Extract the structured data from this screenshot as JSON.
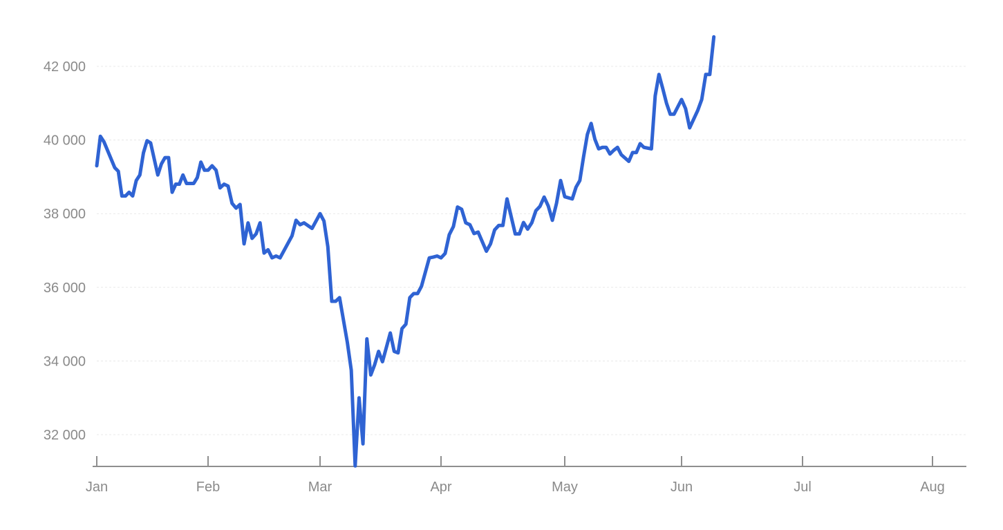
{
  "colors": {
    "line": "#2f63d3",
    "grid": "#e8e8e8",
    "axis": "#8e8e8e",
    "label": "#8a8a8a"
  },
  "chart_data": {
    "type": "line",
    "title": "",
    "xlabel": "",
    "ylabel": "",
    "grid": true,
    "legend": "none",
    "x_ticks": [
      "Jan",
      "Feb",
      "Mar",
      "Apr",
      "May",
      "Jun",
      "Jul",
      "Aug"
    ],
    "y_ticks": [
      "32 000",
      "34 000",
      "36 000",
      "38 000",
      "40 000",
      "42 000"
    ],
    "y_tick_values": [
      32000,
      34000,
      36000,
      38000,
      40000,
      42000
    ],
    "ylim": [
      31150,
      42900
    ],
    "xlim": [
      "Jan 1",
      "Aug 8"
    ],
    "series": [
      {
        "values": [
          [
            "Jan 1",
            39300
          ],
          [
            "Jan 2",
            40100
          ],
          [
            "Jan 3",
            39950
          ],
          [
            "Jan 6",
            39250
          ],
          [
            "Jan 7",
            39150
          ],
          [
            "Jan 8",
            38480
          ],
          [
            "Jan 9",
            38480
          ],
          [
            "Jan 10",
            38580
          ],
          [
            "Jan 11",
            38480
          ],
          [
            "Jan 12",
            38900
          ],
          [
            "Jan 13",
            39050
          ],
          [
            "Jan 14",
            39650
          ],
          [
            "Jan 15",
            39980
          ],
          [
            "Jan 16",
            39920
          ],
          [
            "Jan 18",
            39050
          ],
          [
            "Jan 19",
            39350
          ],
          [
            "Jan 20",
            39520
          ],
          [
            "Jan 21",
            39520
          ],
          [
            "Jan 22",
            38580
          ],
          [
            "Jan 23",
            38800
          ],
          [
            "Jan 24",
            38800
          ],
          [
            "Jan 25",
            39050
          ],
          [
            "Jan 26",
            38820
          ],
          [
            "Jan 28",
            38820
          ],
          [
            "Jan 29",
            38980
          ],
          [
            "Jan 30",
            39400
          ],
          [
            "Jan 31",
            39180
          ],
          [
            "Feb 1",
            39180
          ],
          [
            "Feb 2",
            39300
          ],
          [
            "Feb 3",
            39180
          ],
          [
            "Feb 4",
            38700
          ],
          [
            "Feb 5",
            38800
          ],
          [
            "Feb 6",
            38750
          ],
          [
            "Feb 7",
            38280
          ],
          [
            "Feb 8",
            38150
          ],
          [
            "Feb 9",
            38250
          ],
          [
            "Feb 10",
            37180
          ],
          [
            "Feb 11",
            37750
          ],
          [
            "Feb 12",
            37330
          ],
          [
            "Feb 13",
            37450
          ],
          [
            "Feb 14",
            37750
          ],
          [
            "Feb 15",
            36930
          ],
          [
            "Feb 16",
            37020
          ],
          [
            "Feb 17",
            36800
          ],
          [
            "Feb 18",
            36850
          ],
          [
            "Feb 19",
            36800
          ],
          [
            "Feb 22",
            37400
          ],
          [
            "Feb 23",
            37820
          ],
          [
            "Feb 24",
            37700
          ],
          [
            "Feb 25",
            37750
          ],
          [
            "Feb 27",
            37600
          ],
          [
            "Mar 1",
            38000
          ],
          [
            "Mar 2",
            37800
          ],
          [
            "Mar 3",
            37100
          ],
          [
            "Mar 4",
            35620
          ],
          [
            "Mar 5",
            35620
          ],
          [
            "Mar 6",
            35720
          ],
          [
            "Mar 8",
            34500
          ],
          [
            "Mar 9",
            33750
          ],
          [
            "Mar 10",
            31150
          ],
          [
            "Mar 11",
            33000
          ],
          [
            "Mar 12",
            31750
          ],
          [
            "Mar 13",
            34600
          ],
          [
            "Mar 14",
            33620
          ],
          [
            "Mar 15",
            33900
          ],
          [
            "Mar 16",
            34260
          ],
          [
            "Mar 17",
            33980
          ],
          [
            "Mar 19",
            34760
          ],
          [
            "Mar 20",
            34260
          ],
          [
            "Mar 21",
            34220
          ],
          [
            "Mar 22",
            34880
          ],
          [
            "Mar 23",
            35000
          ],
          [
            "Mar 24",
            35720
          ],
          [
            "Mar 25",
            35830
          ],
          [
            "Mar 26",
            35830
          ],
          [
            "Mar 27",
            36030
          ],
          [
            "Mar 29",
            36800
          ],
          [
            "Mar 30",
            36820
          ],
          [
            "Mar 31",
            36850
          ],
          [
            "Apr 1",
            36800
          ],
          [
            "Apr 2",
            36920
          ],
          [
            "Apr 3",
            37430
          ],
          [
            "Apr 4",
            37650
          ],
          [
            "Apr 5",
            38180
          ],
          [
            "Apr 6",
            38120
          ],
          [
            "Apr 7",
            37750
          ],
          [
            "Apr 8",
            37700
          ],
          [
            "Apr 9",
            37460
          ],
          [
            "Apr 10",
            37500
          ],
          [
            "Apr 12",
            36980
          ],
          [
            "Apr 13",
            37180
          ],
          [
            "Apr 14",
            37560
          ],
          [
            "Apr 15",
            37680
          ],
          [
            "Apr 16",
            37680
          ],
          [
            "Apr 17",
            38400
          ],
          [
            "Apr 19",
            37450
          ],
          [
            "Apr 20",
            37450
          ],
          [
            "Apr 21",
            37760
          ],
          [
            "Apr 22",
            37580
          ],
          [
            "Apr 23",
            37750
          ],
          [
            "Apr 24",
            38080
          ],
          [
            "Apr 25",
            38200
          ],
          [
            "Apr 26",
            38450
          ],
          [
            "Apr 27",
            38210
          ],
          [
            "Apr 28",
            37820
          ],
          [
            "Apr 29",
            38280
          ],
          [
            "Apr 30",
            38900
          ],
          [
            "May 1",
            38460
          ],
          [
            "May 3",
            38400
          ],
          [
            "May 4",
            38720
          ],
          [
            "May 5",
            38900
          ],
          [
            "May 6",
            39550
          ],
          [
            "May 7",
            40150
          ],
          [
            "May 8",
            40450
          ],
          [
            "May 9",
            40020
          ],
          [
            "May 10",
            39760
          ],
          [
            "May 11",
            39800
          ],
          [
            "May 12",
            39800
          ],
          [
            "May 13",
            39620
          ],
          [
            "May 14",
            39720
          ],
          [
            "May 15",
            39800
          ],
          [
            "May 16",
            39600
          ],
          [
            "May 18",
            39420
          ],
          [
            "May 19",
            39660
          ],
          [
            "May 20",
            39660
          ],
          [
            "May 21",
            39900
          ],
          [
            "May 22",
            39800
          ],
          [
            "May 24",
            39760
          ],
          [
            "May 25",
            41200
          ],
          [
            "May 26",
            41780
          ],
          [
            "May 27",
            41400
          ],
          [
            "May 28",
            41000
          ],
          [
            "May 29",
            40700
          ],
          [
            "May 30",
            40700
          ],
          [
            "Jun 1",
            41100
          ],
          [
            "Jun 2",
            40850
          ],
          [
            "Jun 3",
            40330
          ],
          [
            "Jun 5",
            40800
          ],
          [
            "Jun 6",
            41100
          ],
          [
            "Jun 7",
            41780
          ],
          [
            "Jun 8",
            41780
          ],
          [
            "Jun 9",
            42800
          ]
        ]
      }
    ]
  }
}
